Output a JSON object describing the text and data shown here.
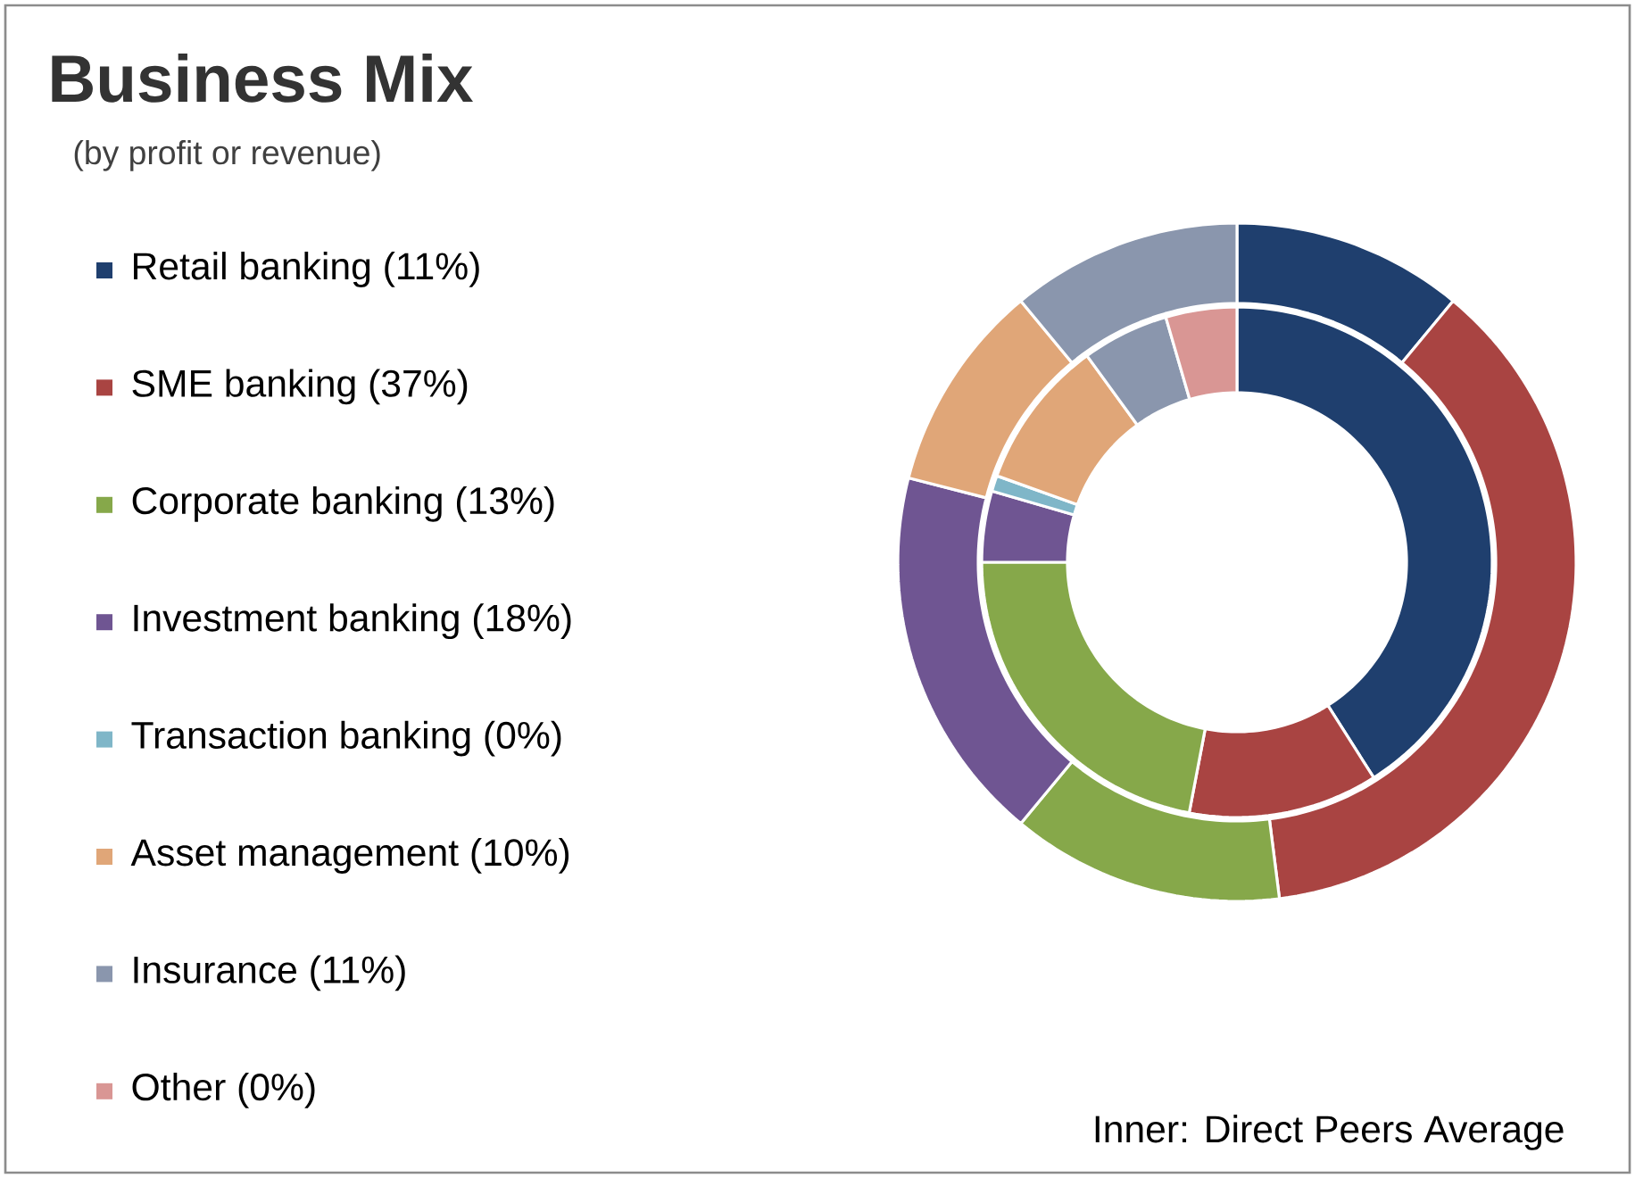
{
  "chart_data": {
    "type": "donut",
    "title": "Business Mix",
    "subtitle": "(by profit or revenue)",
    "categories": [
      "Retail banking (11%)",
      "SME banking (37%)",
      "Corporate banking (13%)",
      "Investment banking (18%)",
      "Transaction banking (0%)",
      "Asset management (10%)",
      "Insurance (11%)",
      "Other (0%)"
    ],
    "colors": [
      "#1f3f6e",
      "#a94442",
      "#86a84a",
      "#6f5592",
      "#7fb6c8",
      "#e0a678",
      "#8a96ad",
      "#d99694"
    ],
    "series": [
      {
        "values": [
          11,
          37,
          13,
          18,
          0,
          10,
          11,
          0
        ]
      },
      {
        "values": [
          41,
          12,
          22,
          4.5,
          1,
          9.5,
          5.5,
          4.5
        ]
      }
    ],
    "legend": "left",
    "annotations": [
      "Inner: Direct Peers Average"
    ]
  }
}
